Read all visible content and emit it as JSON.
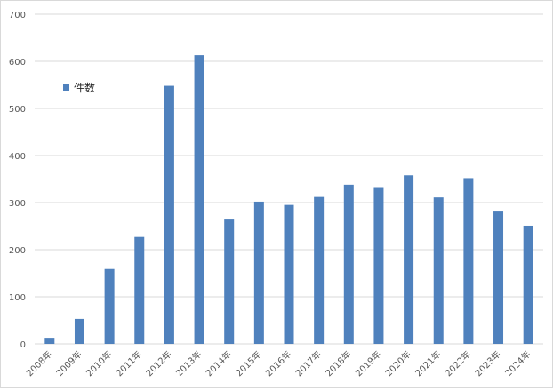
{
  "chart_data": {
    "type": "bar",
    "categories": [
      "2008年",
      "2009年",
      "2010年",
      "2011年",
      "2012年",
      "2013年",
      "2014年",
      "2015年",
      "2016年",
      "2017年",
      "2018年",
      "2019年",
      "2020年",
      "2021年",
      "2022年",
      "2023年",
      "2024年"
    ],
    "series": [
      {
        "name": "件数",
        "values": [
          13,
          53,
          159,
          227,
          548,
          613,
          264,
          302,
          295,
          312,
          338,
          333,
          358,
          311,
          352,
          281,
          251
        ],
        "color": "#4F81BD"
      }
    ],
    "ylim": [
      0,
      700
    ],
    "yticks": [
      0,
      100,
      200,
      300,
      400,
      500,
      600,
      700
    ],
    "grid": true,
    "legend_position": "top-left",
    "title": "",
    "xlabel": "",
    "ylabel": ""
  },
  "legend": {
    "label": "件数"
  }
}
